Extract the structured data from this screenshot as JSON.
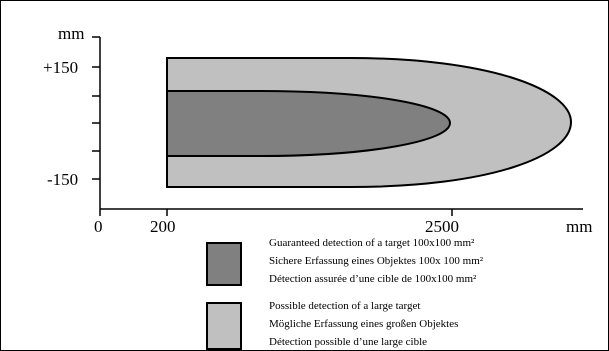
{
  "y_axis": {
    "unit": "mm",
    "ticks": [
      "+150",
      "-150"
    ]
  },
  "x_axis": {
    "unit": "mm",
    "ticks": [
      "0",
      "200",
      "2500"
    ]
  },
  "zones": {
    "guaranteed": {
      "color": "#808080",
      "lines": [
        "Guaranteed detection of a target 100x100 mm²",
        "Sichere Erfassung eines Objektes 100x 100 mm²",
        "Détection assurée d’une cible de 100x100 mm²"
      ]
    },
    "possible": {
      "color": "#c0c0c0",
      "lines": [
        "Possible detection of a large target",
        "Mögliche Erfassung eines  großen Objektes",
        "Détection possible d’une large cible"
      ]
    }
  }
}
